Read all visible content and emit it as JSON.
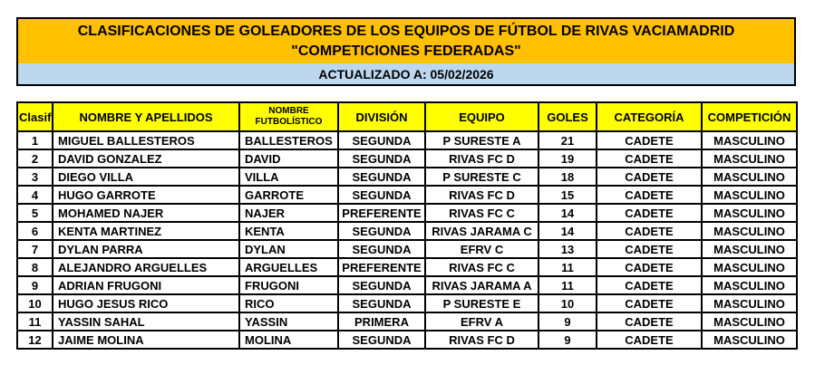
{
  "header": {
    "title_line1": "CLASIFICACIONES DE GOLEADORES DE LOS EQUIPOS DE FÚTBOL DE RIVAS VACIAMADRID",
    "title_line2": "\"COMPETICIONES FEDERADAS\"",
    "updated_label": "ACTUALIZADO A: 05/02/2026"
  },
  "colors": {
    "title_bg": "#FFC000",
    "updated_bg": "#BDD7EE",
    "table_header_bg": "#FFFF00",
    "border": "#000000",
    "text": "#000000"
  },
  "table": {
    "columns": [
      {
        "id": "clasif",
        "label": "Clasif"
      },
      {
        "id": "nombre-apellidos",
        "label": "NOMBRE Y APELLIDOS"
      },
      {
        "id": "nombre-futbolistico",
        "label": "NOMBRE\nFUTBOLÍSTICO"
      },
      {
        "id": "division",
        "label": "DIVISIÓN"
      },
      {
        "id": "equipo",
        "label": "EQUIPO"
      },
      {
        "id": "goles",
        "label": "GOLES"
      },
      {
        "id": "categoria",
        "label": "CATEGORÍA"
      },
      {
        "id": "competicion",
        "label": "COMPETICIÓN"
      }
    ],
    "rows": [
      [
        "1",
        "MIGUEL BALLESTEROS",
        "BALLESTEROS",
        "SEGUNDA",
        "P SURESTE A",
        "21",
        "CADETE",
        "MASCULINO"
      ],
      [
        "2",
        "DAVID GONZALEZ",
        "DAVID",
        "SEGUNDA",
        "RIVAS FC D",
        "19",
        "CADETE",
        "MASCULINO"
      ],
      [
        "3",
        "DIEGO VILLA",
        "VILLA",
        "SEGUNDA",
        "P SURESTE C",
        "18",
        "CADETE",
        "MASCULINO"
      ],
      [
        "4",
        "HUGO GARROTE",
        "GARROTE",
        "SEGUNDA",
        "RIVAS FC D",
        "15",
        "CADETE",
        "MASCULINO"
      ],
      [
        "5",
        "MOHAMED NAJER",
        "NAJER",
        "PREFERENTE",
        "RIVAS FC C",
        "14",
        "CADETE",
        "MASCULINO"
      ],
      [
        "6",
        "KENTA MARTINEZ",
        "KENTA",
        "SEGUNDA",
        "RIVAS JARAMA C",
        "14",
        "CADETE",
        "MASCULINO"
      ],
      [
        "7",
        "DYLAN PARRA",
        "DYLAN",
        "SEGUNDA",
        "EFRV C",
        "13",
        "CADETE",
        "MASCULINO"
      ],
      [
        "8",
        "ALEJANDRO ARGUELLES",
        "ARGUELLES",
        "PREFERENTE",
        "RIVAS FC C",
        "11",
        "CADETE",
        "MASCULINO"
      ],
      [
        "9",
        "ADRIAN FRUGONI",
        "FRUGONI",
        "SEGUNDA",
        "RIVAS JARAMA A",
        "11",
        "CADETE",
        "MASCULINO"
      ],
      [
        "10",
        "HUGO JESUS RICO",
        "RICO",
        "SEGUNDA",
        "P SURESTE E",
        "10",
        "CADETE",
        "MASCULINO"
      ],
      [
        "11",
        "YASSIN SAHAL",
        "YASSIN",
        "PRIMERA",
        "EFRV A",
        "9",
        "CADETE",
        "MASCULINO"
      ],
      [
        "12",
        "JAIME MOLINA",
        "MOLINA",
        "SEGUNDA",
        "RIVAS FC D",
        "9",
        "CADETE",
        "MASCULINO"
      ]
    ]
  }
}
